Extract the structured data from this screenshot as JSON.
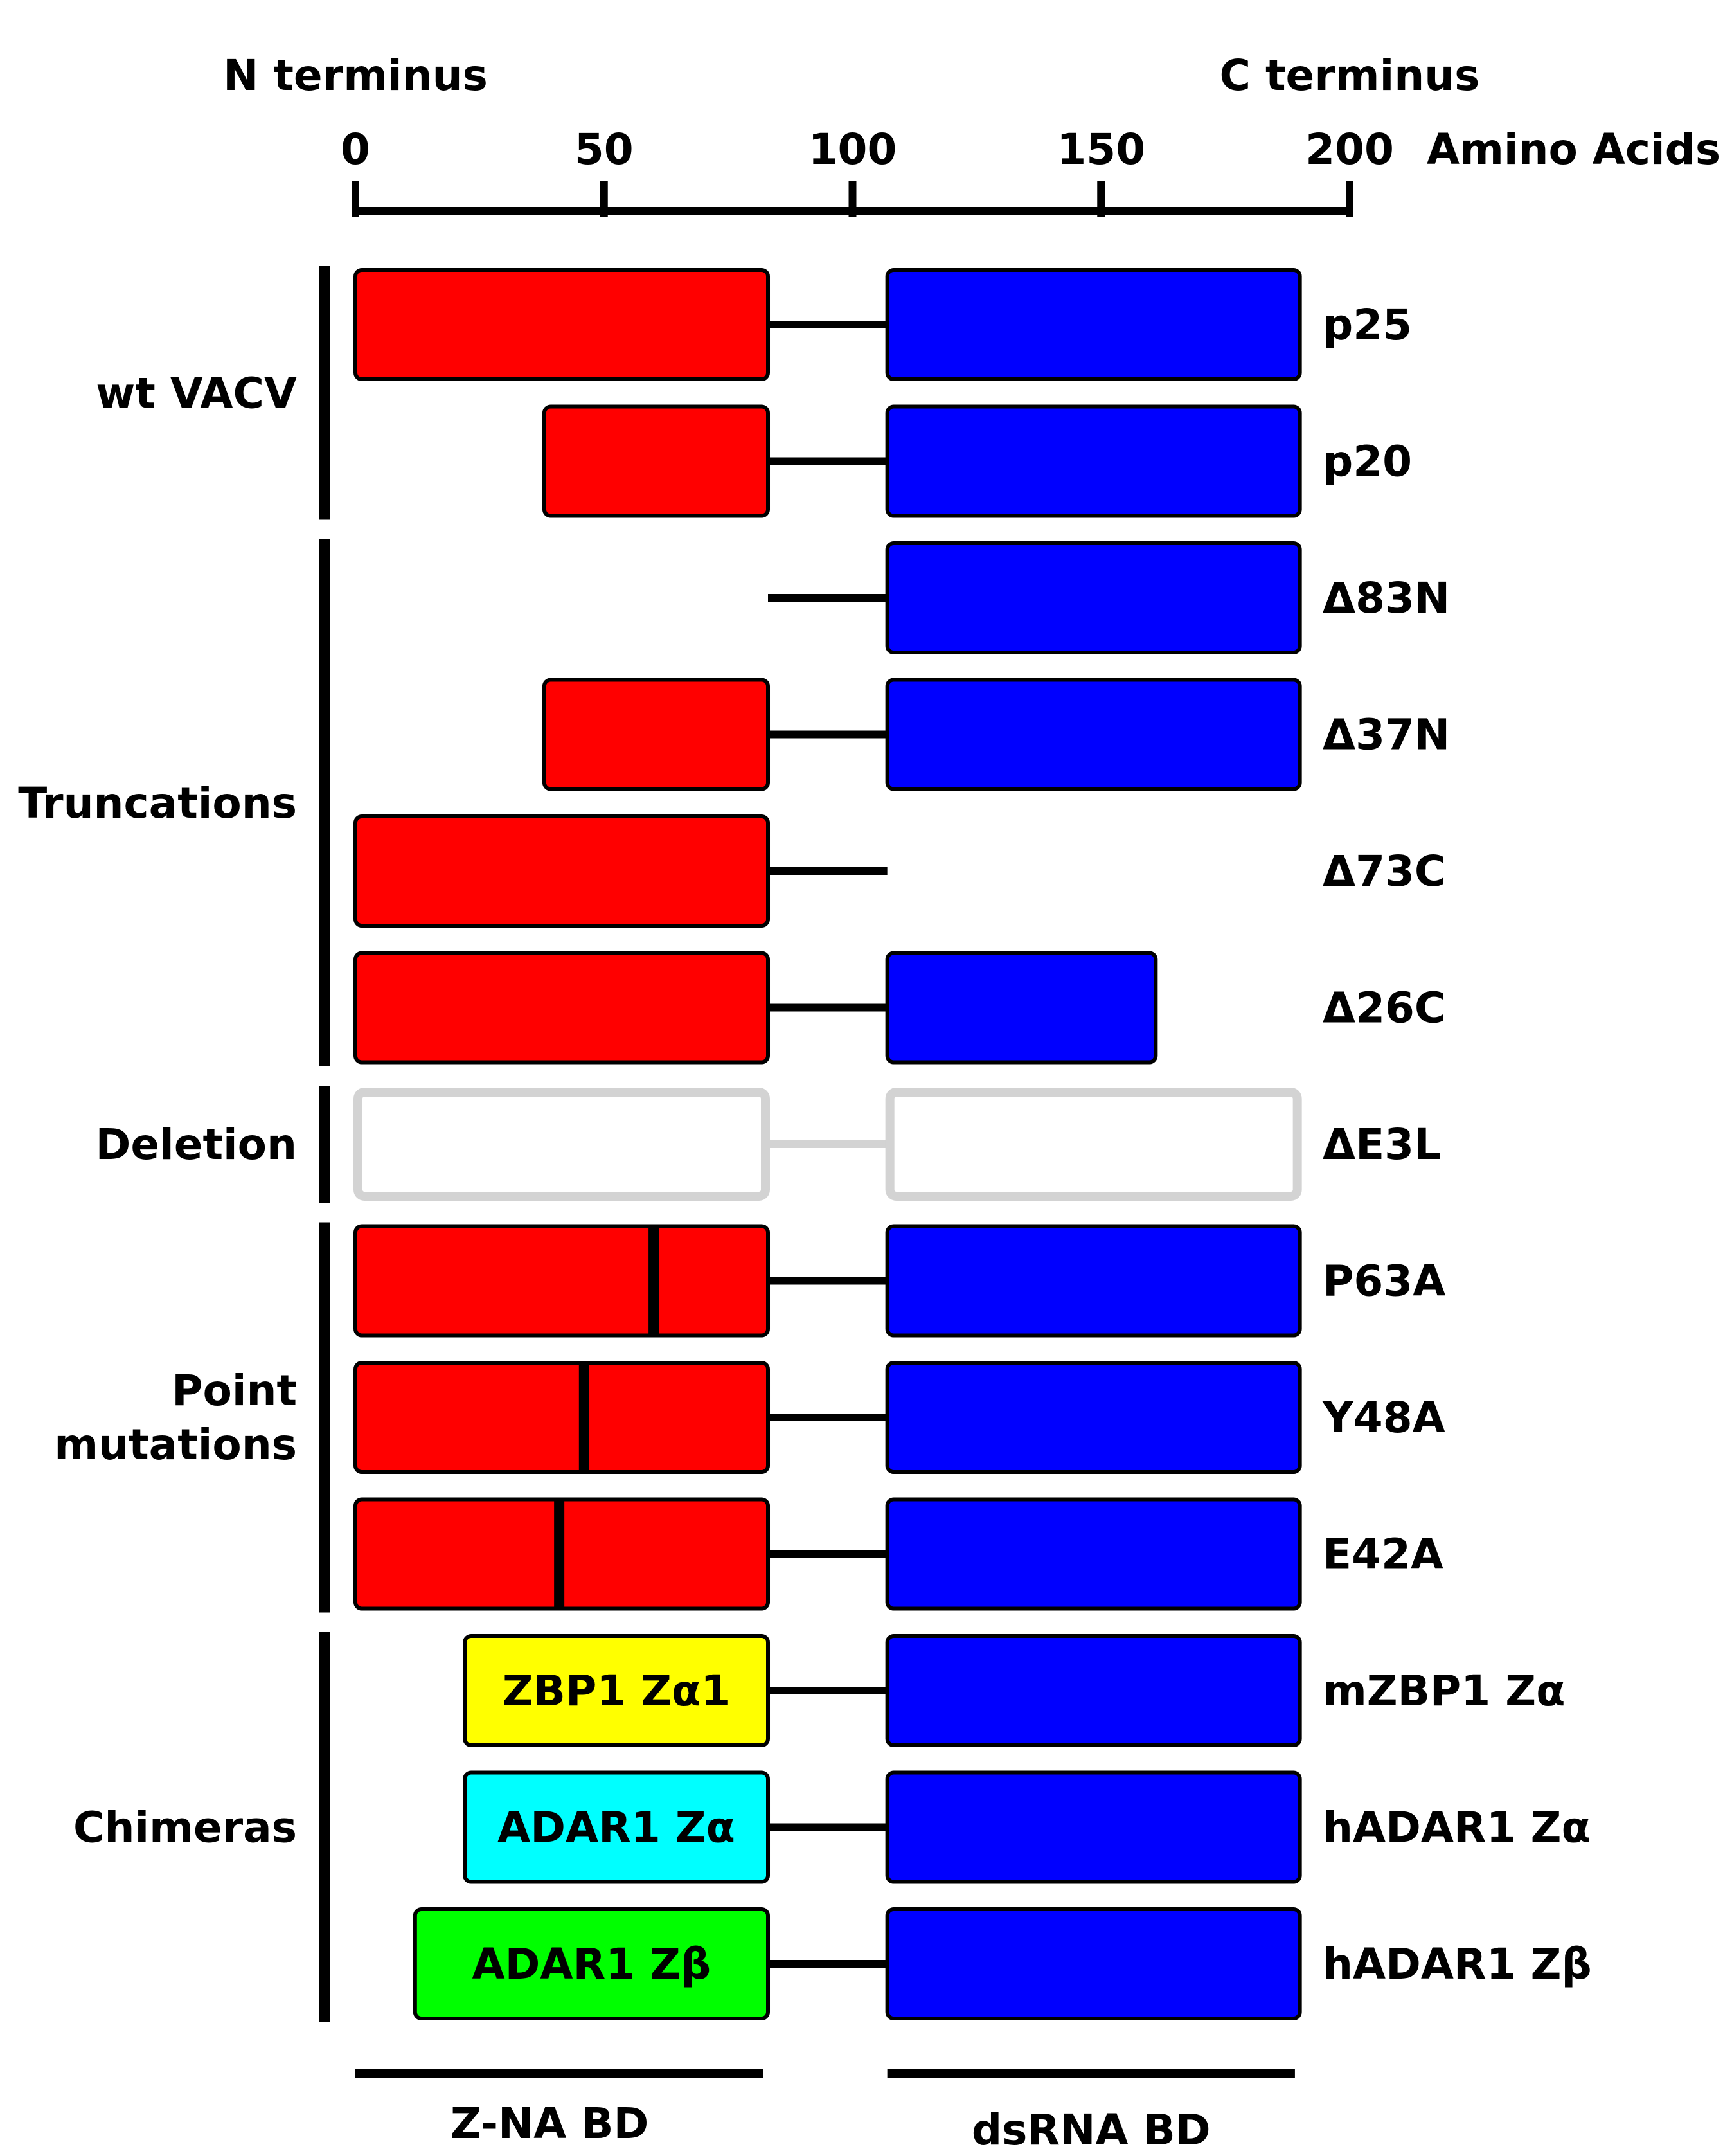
{
  "header": {
    "n_terminus": "N terminus",
    "c_terminus": "C terminus",
    "axis_unit": "Amino Acids"
  },
  "axis": {
    "min": 0,
    "max": 200,
    "ticks": [
      0,
      50,
      100,
      150,
      200
    ]
  },
  "colors": {
    "zna_domain": "#ff0000",
    "dsrna_domain": "#0000ff",
    "zbp1": "#ffff00",
    "adar1_za": "#00ffff",
    "adar1_zb": "#00ff00",
    "deleted": "#d3d3d3",
    "outline": "#000000"
  },
  "groups": [
    {
      "label_lines": [
        "wt VACV"
      ],
      "rows": [
        0,
        1
      ]
    },
    {
      "label_lines": [
        "Truncations"
      ],
      "rows": [
        2,
        3,
        4,
        5
      ]
    },
    {
      "label_lines": [
        "Deletion"
      ],
      "rows": [
        6
      ]
    },
    {
      "label_lines": [
        "Point",
        "mutations"
      ],
      "rows": [
        7,
        8,
        9
      ]
    },
    {
      "label_lines": [
        "Chimeras"
      ],
      "rows": [
        10,
        11,
        12
      ]
    }
  ],
  "constructs": [
    {
      "label": "p25",
      "linker": [
        83,
        107
      ],
      "domains": [
        {
          "start": 0,
          "end": 83,
          "fill": "zna_domain",
          "text": ""
        },
        {
          "start": 107,
          "end": 190,
          "fill": "dsrna_domain",
          "text": ""
        }
      ],
      "mutation_at": null,
      "deleted": false
    },
    {
      "label": "p20",
      "linker": [
        83,
        107
      ],
      "domains": [
        {
          "start": 38,
          "end": 83,
          "fill": "zna_domain",
          "text": ""
        },
        {
          "start": 107,
          "end": 190,
          "fill": "dsrna_domain",
          "text": ""
        }
      ],
      "mutation_at": null,
      "deleted": false
    },
    {
      "label": "Δ83N",
      "linker": [
        83,
        107
      ],
      "domains": [
        {
          "start": 107,
          "end": 190,
          "fill": "dsrna_domain",
          "text": ""
        }
      ],
      "mutation_at": null,
      "deleted": false
    },
    {
      "label": "Δ37N",
      "linker": [
        83,
        107
      ],
      "domains": [
        {
          "start": 38,
          "end": 83,
          "fill": "zna_domain",
          "text": ""
        },
        {
          "start": 107,
          "end": 190,
          "fill": "dsrna_domain",
          "text": ""
        }
      ],
      "mutation_at": null,
      "deleted": false
    },
    {
      "label": "Δ73C",
      "linker": [
        83,
        107
      ],
      "domains": [
        {
          "start": 0,
          "end": 83,
          "fill": "zna_domain",
          "text": ""
        }
      ],
      "mutation_at": null,
      "deleted": false
    },
    {
      "label": "Δ26C",
      "linker": [
        83,
        107
      ],
      "domains": [
        {
          "start": 0,
          "end": 83,
          "fill": "zna_domain",
          "text": ""
        },
        {
          "start": 107,
          "end": 161,
          "fill": "dsrna_domain",
          "text": ""
        }
      ],
      "mutation_at": null,
      "deleted": false
    },
    {
      "label": "ΔE3L",
      "linker": [
        83,
        107
      ],
      "domains": [
        {
          "start": 0,
          "end": 83,
          "fill": "deleted",
          "text": ""
        },
        {
          "start": 107,
          "end": 190,
          "fill": "deleted",
          "text": ""
        }
      ],
      "mutation_at": null,
      "deleted": true
    },
    {
      "label": "P63A",
      "linker": [
        83,
        107
      ],
      "domains": [
        {
          "start": 0,
          "end": 83,
          "fill": "zna_domain",
          "text": ""
        },
        {
          "start": 107,
          "end": 190,
          "fill": "dsrna_domain",
          "text": ""
        }
      ],
      "mutation_at": 60,
      "deleted": false
    },
    {
      "label": "Y48A",
      "linker": [
        83,
        107
      ],
      "domains": [
        {
          "start": 0,
          "end": 83,
          "fill": "zna_domain",
          "text": ""
        },
        {
          "start": 107,
          "end": 190,
          "fill": "dsrna_domain",
          "text": ""
        }
      ],
      "mutation_at": 46,
      "deleted": false
    },
    {
      "label": "E42A",
      "linker": [
        83,
        107
      ],
      "domains": [
        {
          "start": 0,
          "end": 83,
          "fill": "zna_domain",
          "text": ""
        },
        {
          "start": 107,
          "end": 190,
          "fill": "dsrna_domain",
          "text": ""
        }
      ],
      "mutation_at": 41,
      "deleted": false
    },
    {
      "label": "mZBP1 Zα",
      "linker": [
        83,
        107
      ],
      "domains": [
        {
          "start": 22,
          "end": 83,
          "fill": "zbp1",
          "text": "ZBP1 Zα1"
        },
        {
          "start": 107,
          "end": 190,
          "fill": "dsrna_domain",
          "text": ""
        }
      ],
      "mutation_at": null,
      "deleted": false
    },
    {
      "label": "hADAR1 Zα",
      "linker": [
        83,
        107
      ],
      "domains": [
        {
          "start": 22,
          "end": 83,
          "fill": "adar1_za",
          "text": "ADAR1 Zα"
        },
        {
          "start": 107,
          "end": 190,
          "fill": "dsrna_domain",
          "text": ""
        }
      ],
      "mutation_at": null,
      "deleted": false
    },
    {
      "label": "hADAR1 Zβ",
      "linker": [
        83,
        107
      ],
      "domains": [
        {
          "start": 12,
          "end": 83,
          "fill": "adar1_zb",
          "text": "ADAR1 Zβ"
        },
        {
          "start": 107,
          "end": 190,
          "fill": "dsrna_domain",
          "text": ""
        }
      ],
      "mutation_at": null,
      "deleted": false
    }
  ],
  "footer": {
    "zna_label": "Z-NA BD",
    "zna_range": [
      0,
      82
    ],
    "dsrna_label": "dsRNA BD",
    "dsrna_range": [
      107,
      189
    ]
  }
}
